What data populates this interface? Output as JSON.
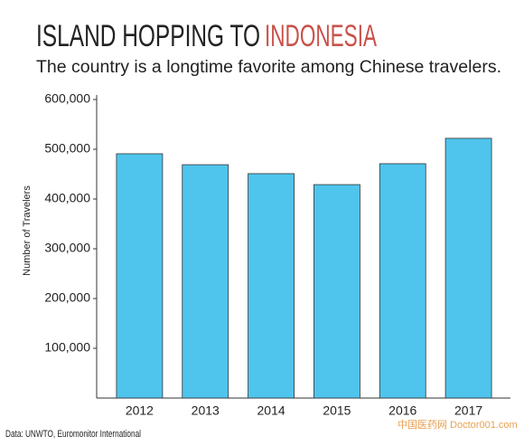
{
  "chart_data": {
    "type": "bar",
    "title": "ISLAND HOPPING TO",
    "title_highlight": "INDONESIA",
    "subtitle": "The country is a longtime favorite among Chinese travelers.",
    "y_label": "Number of Travelers",
    "source": "Data: UNWTO, Euromonitor International",
    "watermark": "中国医药网 Doctor001.com",
    "categories": [
      "2012",
      "2013",
      "2014",
      "2015",
      "2016",
      "2017"
    ],
    "values": [
      491000,
      469000,
      451000,
      429000,
      471000,
      522000
    ],
    "color": "#4fc4ec",
    "highlight_color": "#c8524a",
    "ylim": [
      0,
      600000
    ],
    "yticks": [
      {
        "value": 100000,
        "label": "100,000"
      },
      {
        "value": 200000,
        "label": "200,000"
      },
      {
        "value": 300000,
        "label": "300,000"
      },
      {
        "value": 400000,
        "label": "400,000"
      },
      {
        "value": 500000,
        "label": "500,000"
      },
      {
        "value": 600000,
        "label": "600,000"
      }
    ],
    "grid": false
  }
}
